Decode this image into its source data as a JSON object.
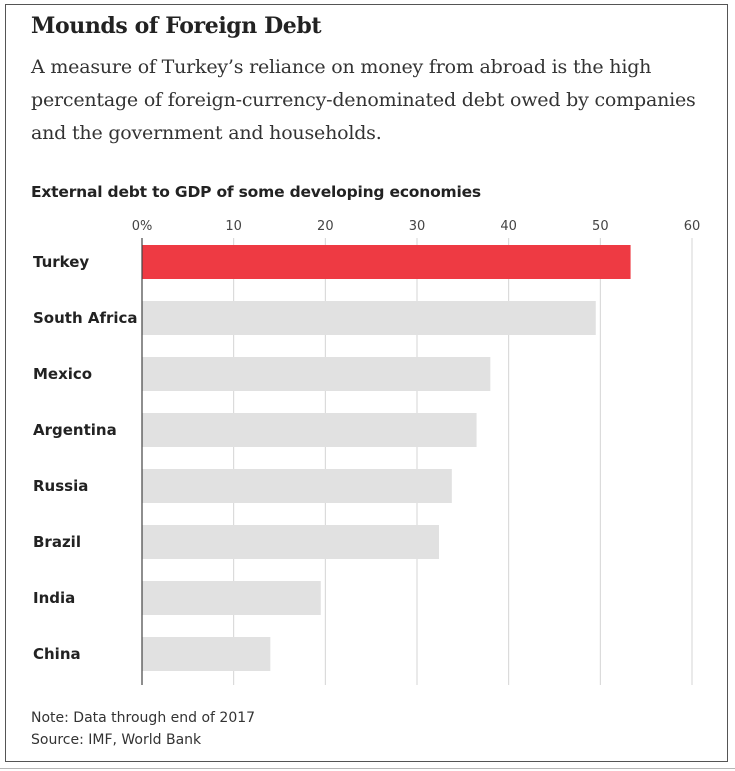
{
  "headline": "Mounds of Foreign Debt",
  "dek": "A measure of Turkey’s reliance on money from abroad is the high percentage of foreign-currency-denominated debt owed by companies and the government and households.",
  "chart_data": {
    "type": "bar",
    "orientation": "horizontal",
    "title": "External debt to GDP of some developing economies",
    "categories": [
      "Turkey",
      "South Africa",
      "Mexico",
      "Argentina",
      "Russia",
      "Brazil",
      "India",
      "China"
    ],
    "values": [
      53.3,
      49.5,
      38,
      36.5,
      33.8,
      32.4,
      19.5,
      14
    ],
    "xlim": [
      0,
      60
    ],
    "xticks": [
      0,
      10,
      20,
      30,
      40,
      50,
      60
    ],
    "xtick_labels": [
      "0%",
      "10",
      "20",
      "30",
      "40",
      "50",
      "60"
    ],
    "axis_position": "top",
    "grid": true,
    "colors": {
      "highlight": "#ee3a43",
      "default": "#e1e1e1",
      "grid": "#d4d4d4",
      "baseline": "#444444"
    },
    "highlight_category": "Turkey"
  },
  "footer": {
    "note": "Note: Data through end of 2017",
    "source": "Source: IMF, World Bank"
  }
}
